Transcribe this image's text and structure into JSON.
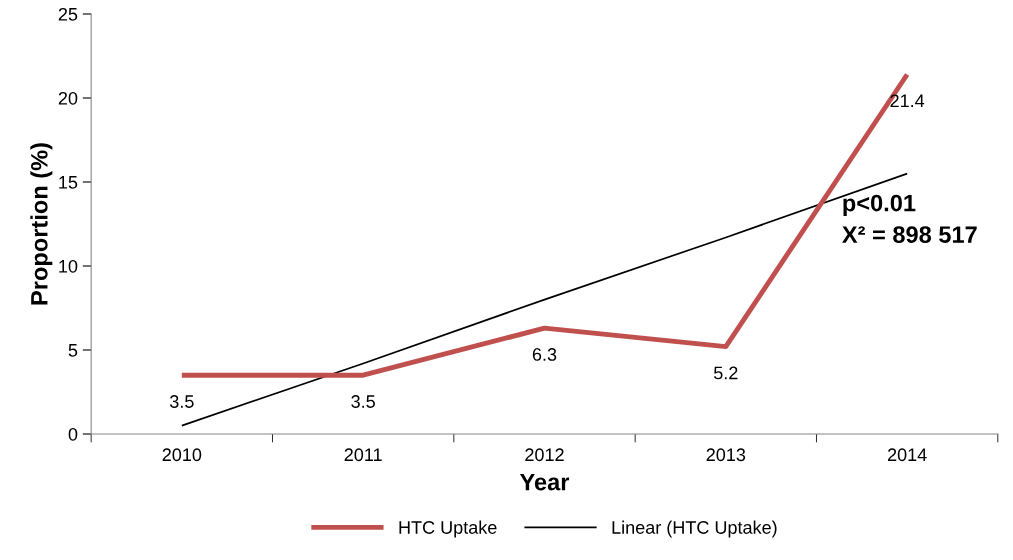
{
  "chart_data": {
    "type": "line",
    "xlabel": "Year",
    "ylabel": "Proportion (%)",
    "categories": [
      "2010",
      "2011",
      "2012",
      "2013",
      "2014"
    ],
    "series": [
      {
        "name": "HTC Uptake",
        "color": "#c0504d",
        "values": [
          3.5,
          3.5,
          6.3,
          5.2,
          21.4
        ],
        "value_labels": [
          "3.5",
          "3.5",
          "6.3",
          "5.2",
          "21.4"
        ]
      },
      {
        "name": "Linear (HTC Uptake)",
        "color": "#000000",
        "values": [
          0.5,
          4.2,
          8.0,
          11.7,
          15.5
        ]
      }
    ],
    "ylim": [
      0,
      25
    ],
    "yticks": [
      0,
      5,
      10,
      15,
      20,
      25
    ],
    "grid": false,
    "legend": "bottom",
    "marker": "none",
    "line_style": "solid",
    "annotations": [
      "p<0.01",
      "X² = 898 517"
    ]
  }
}
